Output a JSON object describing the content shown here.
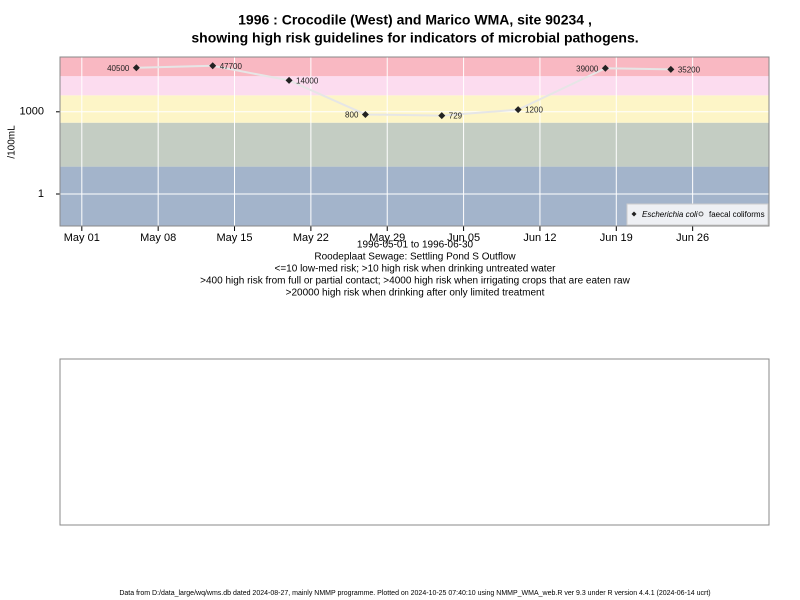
{
  "chart_data": {
    "type": "line",
    "title": [
      "1996 : Crocodile (West) and Marico WMA, site 90234 ,",
      "showing high risk guidelines for indicators of microbial pathogens."
    ],
    "notes": [
      "1996-05-01 to 1996-06-30",
      "Roodeplaat Sewage: Settling Pond S Outflow",
      "<=10 low-med risk; >10 high risk when drinking untreated water",
      ">400 high risk from full or partial contact; >4000 high risk when irrigating crops that are eaten raw",
      ">20000 high risk when drinking after only limited treatment"
    ],
    "ylabel": "/100mL",
    "log_y": true,
    "grid": true,
    "legend": "bottom-right",
    "x": [
      "1996-05-06",
      "1996-05-13",
      "1996-05-20",
      "1996-05-27",
      "1996-06-03",
      "1996-06-10",
      "1996-06-18",
      "1996-06-24"
    ],
    "series": [
      {
        "name": "Escherichia coli",
        "color": "#222222",
        "line_color": "#e6e6e6",
        "values": [
          40500,
          47700,
          14000,
          800,
          729,
          1200,
          39000,
          35200
        ]
      },
      {
        "name": "faecal coliforms",
        "color": "#555555",
        "values": [
          null,
          null,
          null,
          null,
          null,
          null,
          null,
          null
        ]
      }
    ],
    "bands": [
      {
        "from": 0.068,
        "to": 10,
        "color": "#a3b4cb"
      },
      {
        "from": 10,
        "to": 400,
        "color": "#c4cdc3"
      },
      {
        "from": 400,
        "to": 4000,
        "color": "#fdf5c7"
      },
      {
        "from": 4000,
        "to": 20000,
        "color": "#fcdcef"
      },
      {
        "from": 20000,
        "to": 100000,
        "color": "#f9b8c2"
      }
    ],
    "xlim": [
      "1996-04-29",
      "1996-07-03"
    ],
    "xticks": [
      {
        "value": "1996-05-01",
        "label": "May 01"
      },
      {
        "value": "1996-05-08",
        "label": "May 08"
      },
      {
        "value": "1996-05-15",
        "label": "May 15"
      },
      {
        "value": "1996-05-22",
        "label": "May 22"
      },
      {
        "value": "1996-05-29",
        "label": "May 29"
      },
      {
        "value": "1996-06-05",
        "label": "Jun 05"
      },
      {
        "value": "1996-06-12",
        "label": "Jun 12"
      },
      {
        "value": "1996-06-19",
        "label": "Jun 19"
      },
      {
        "value": "1996-06-26",
        "label": "Jun 26"
      }
    ],
    "ylim": [
      0.068,
      100000
    ],
    "yticks": [
      1,
      1000
    ]
  },
  "footer": "Data from D:/data_large/wq/wms.db dated 2024-08-27, mainly NMMP programme. Plotted on 2024-10-25 07:40:10 using NMMP_WMA_web.R ver 9.3 under R version 4.4.1 (2024-06-14 ucrt)"
}
